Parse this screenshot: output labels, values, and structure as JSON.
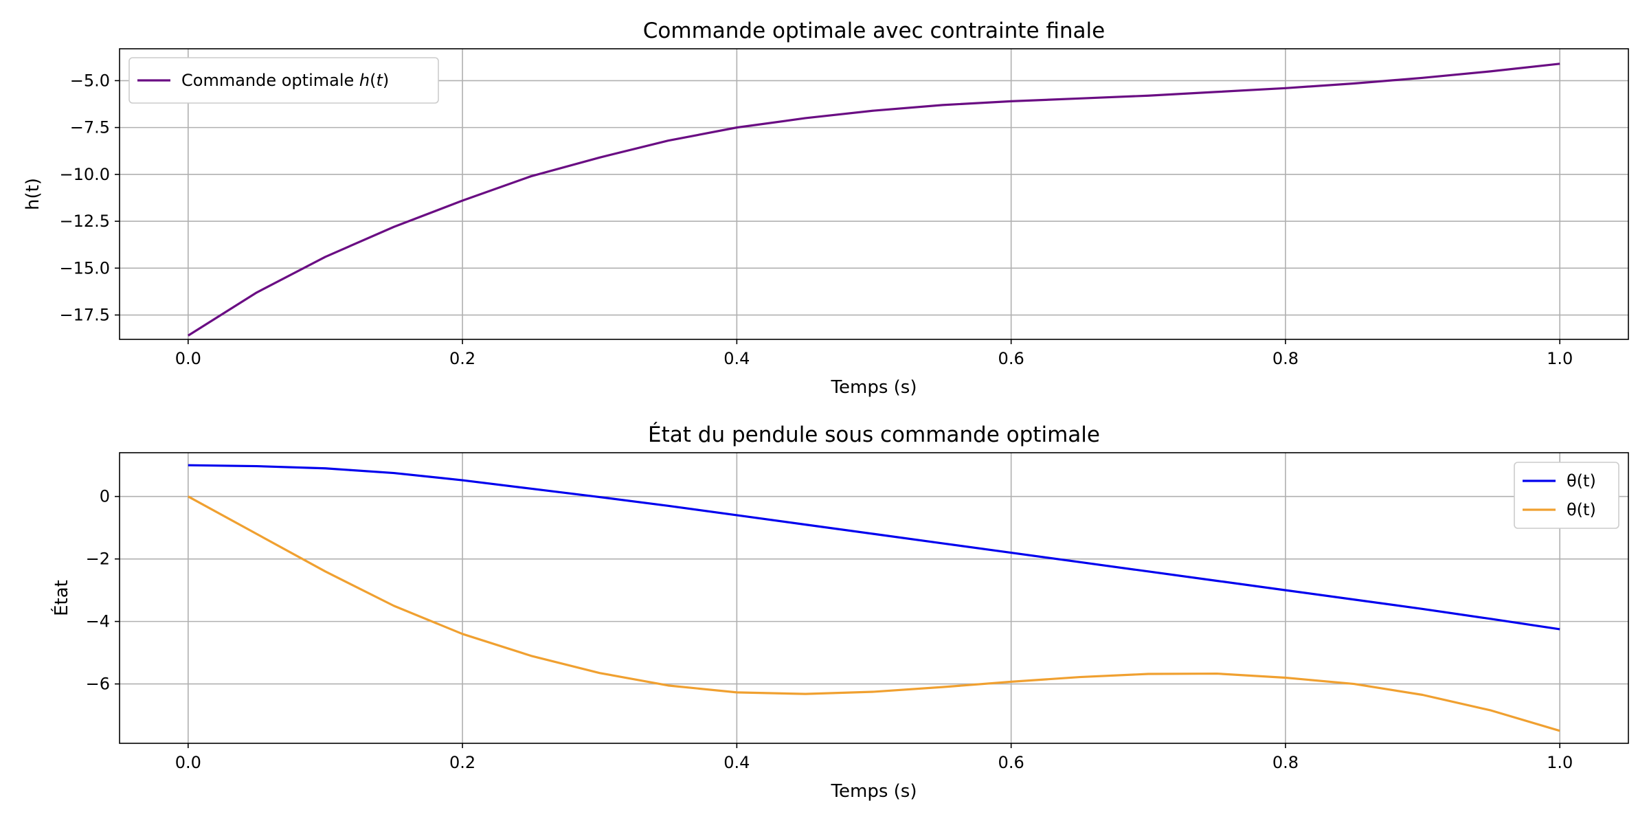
{
  "chart_data": [
    {
      "type": "line",
      "title": "Commande optimale avec contrainte finale",
      "xlabel": "Temps (s)",
      "ylabel": "h(t)",
      "xlim": [
        -0.05,
        1.05
      ],
      "ylim": [
        -18.8,
        -3.3
      ],
      "grid": true,
      "legend_position": "top-left",
      "x_ticks": [
        0.0,
        0.2,
        0.4,
        0.6,
        0.8,
        1.0
      ],
      "x_tick_labels": [
        "0.0",
        "0.2",
        "0.4",
        "0.6",
        "0.8",
        "1.0"
      ],
      "y_ticks": [
        -17.5,
        -15.0,
        -12.5,
        -10.0,
        -7.5,
        -5.0
      ],
      "y_tick_labels": [
        "−17.5",
        "−15.0",
        "−12.5",
        "−10.0",
        "−7.5",
        "−5.0"
      ],
      "series": [
        {
          "name": "Commande optimale h(t)",
          "legend_prefix": "Commande optimale ",
          "legend_math": "h",
          "legend_math_arg": "t",
          "color": "#6a0d83",
          "x": [
            0.0,
            0.05,
            0.1,
            0.15,
            0.2,
            0.25,
            0.3,
            0.35,
            0.4,
            0.45,
            0.5,
            0.55,
            0.6,
            0.65,
            0.7,
            0.75,
            0.8,
            0.85,
            0.9,
            0.95,
            1.0
          ],
          "y": [
            -18.6,
            -16.3,
            -14.4,
            -12.8,
            -11.4,
            -10.1,
            -9.1,
            -8.2,
            -7.5,
            -7.0,
            -6.6,
            -6.3,
            -6.1,
            -5.95,
            -5.8,
            -5.6,
            -5.4,
            -5.15,
            -4.85,
            -4.5,
            -4.1
          ]
        }
      ]
    },
    {
      "type": "line",
      "title": "État du pendule sous commande optimale",
      "xlabel": "Temps (s)",
      "ylabel": "État",
      "xlim": [
        -0.05,
        1.05
      ],
      "ylim": [
        -7.9,
        1.4
      ],
      "grid": true,
      "legend_position": "top-right",
      "x_ticks": [
        0.0,
        0.2,
        0.4,
        0.6,
        0.8,
        1.0
      ],
      "x_tick_labels": [
        "0.0",
        "0.2",
        "0.4",
        "0.6",
        "0.8",
        "1.0"
      ],
      "y_ticks": [
        -6,
        -4,
        -2,
        0
      ],
      "y_tick_labels": [
        "−6",
        "−4",
        "−2",
        "0"
      ],
      "series": [
        {
          "name": "θ(t)",
          "color": "#0000ee",
          "x": [
            0.0,
            0.05,
            0.1,
            0.15,
            0.2,
            0.25,
            0.3,
            0.35,
            0.4,
            0.45,
            0.5,
            0.55,
            0.6,
            0.65,
            0.7,
            0.75,
            0.8,
            0.85,
            0.9,
            0.95,
            1.0
          ],
          "y": [
            1.0,
            0.97,
            0.9,
            0.75,
            0.52,
            0.25,
            -0.02,
            -0.3,
            -0.6,
            -0.9,
            -1.2,
            -1.5,
            -1.8,
            -2.1,
            -2.4,
            -2.7,
            -3.0,
            -3.3,
            -3.6,
            -3.92,
            -4.25
          ]
        },
        {
          "name": "θ(t)",
          "color": "#f0a030",
          "x": [
            0.0,
            0.05,
            0.1,
            0.15,
            0.2,
            0.25,
            0.3,
            0.35,
            0.4,
            0.45,
            0.5,
            0.55,
            0.6,
            0.65,
            0.7,
            0.75,
            0.8,
            0.85,
            0.9,
            0.95,
            1.0
          ],
          "y": [
            0.0,
            -1.2,
            -2.4,
            -3.5,
            -4.4,
            -5.1,
            -5.65,
            -6.05,
            -6.27,
            -6.32,
            -6.25,
            -6.1,
            -5.93,
            -5.78,
            -5.68,
            -5.67,
            -5.8,
            -6.0,
            -6.35,
            -6.85,
            -7.5
          ]
        }
      ]
    }
  ]
}
